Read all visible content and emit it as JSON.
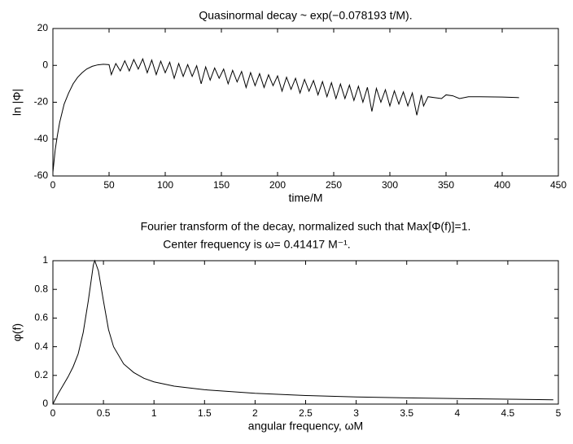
{
  "chart_data": [
    {
      "type": "line",
      "title": "Quasinormal decay ~ exp(−0.078193 t/M).",
      "xlabel": "time/M",
      "ylabel": "ln |Φ|",
      "color": "#000000",
      "x": [
        0,
        1,
        2,
        4,
        6,
        8,
        10,
        14,
        18,
        22,
        26,
        30,
        35,
        40,
        45,
        50,
        52,
        56,
        60,
        64,
        68,
        72,
        76,
        80,
        84,
        88,
        92,
        96,
        100,
        104,
        108,
        112,
        116,
        120,
        124,
        128,
        132,
        136,
        140,
        144,
        148,
        152,
        156,
        160,
        164,
        168,
        172,
        176,
        180,
        184,
        188,
        192,
        196,
        200,
        204,
        208,
        212,
        216,
        220,
        224,
        228,
        232,
        236,
        240,
        244,
        248,
        252,
        256,
        260,
        264,
        268,
        272,
        276,
        280,
        284,
        288,
        292,
        296,
        300,
        304,
        308,
        312,
        316,
        320,
        324,
        328,
        330,
        334,
        340,
        346,
        350,
        356,
        362,
        370,
        380,
        400,
        415
      ],
      "values": [
        -58,
        -52,
        -46,
        -38,
        -31,
        -26,
        -21,
        -15,
        -10,
        -6.5,
        -4,
        -2,
        -0.5,
        0.3,
        0.6,
        0.4,
        -5,
        1,
        -3,
        2.5,
        -3,
        3.2,
        -2,
        3.5,
        -4,
        2.9,
        -5,
        2.3,
        -4,
        1.7,
        -7,
        1.0,
        -6,
        0.4,
        -6,
        -0.2,
        -10,
        -0.8,
        -8,
        -1.4,
        -7,
        -2.0,
        -10,
        -2.7,
        -9,
        -3.3,
        -12,
        -3.9,
        -11,
        -4.5,
        -12,
        -5.1,
        -11,
        -5.7,
        -14,
        -6.4,
        -13,
        -7.0,
        -15,
        -7.6,
        -14,
        -8.2,
        -16,
        -8.8,
        -17,
        -9.4,
        -18,
        -10.1,
        -18,
        -10.7,
        -19,
        -11.3,
        -20,
        -11.9,
        -25,
        -12.5,
        -20,
        -13.2,
        -22,
        -13.8,
        -21,
        -14.4,
        -22,
        -15.0,
        -27,
        -16,
        -22,
        -17,
        -17.5,
        -18,
        -16,
        -16.5,
        -18,
        -17,
        -17,
        -17.2,
        -17.5
      ],
      "xlim": [
        0,
        450
      ],
      "ylim": [
        -60,
        20
      ],
      "xticks": [
        0,
        50,
        100,
        150,
        200,
        250,
        300,
        350,
        400,
        450
      ],
      "yticks": [
        -60,
        -40,
        -20,
        0,
        20
      ]
    },
    {
      "type": "line",
      "title": "Fourier transform of the decay, normalized such that Max[Φ(f)]=1.",
      "subtitle": "Center frequency is ω= 0.41417 M⁻¹.",
      "xlabel": "angular frequency, ωM",
      "ylabel": "φ(f)",
      "color": "#000000",
      "x": [
        0,
        0.05,
        0.1,
        0.15,
        0.2,
        0.25,
        0.3,
        0.35,
        0.4,
        0.414,
        0.45,
        0.5,
        0.55,
        0.6,
        0.7,
        0.8,
        0.9,
        1,
        1.2,
        1.5,
        2,
        2.5,
        3,
        3.5,
        4,
        4.5,
        4.95
      ],
      "values": [
        0,
        0.07,
        0.13,
        0.19,
        0.26,
        0.35,
        0.5,
        0.72,
        0.97,
        1,
        0.93,
        0.72,
        0.52,
        0.4,
        0.28,
        0.22,
        0.18,
        0.155,
        0.125,
        0.1,
        0.075,
        0.06,
        0.05,
        0.043,
        0.038,
        0.034,
        0.03
      ],
      "xlim": [
        0,
        5
      ],
      "ylim": [
        0,
        1
      ],
      "xticks": [
        0,
        0.5,
        1,
        1.5,
        2,
        2.5,
        3,
        3.5,
        4,
        4.5,
        5
      ],
      "yticks": [
        0,
        0.2,
        0.4,
        0.6,
        0.8,
        1
      ]
    }
  ]
}
